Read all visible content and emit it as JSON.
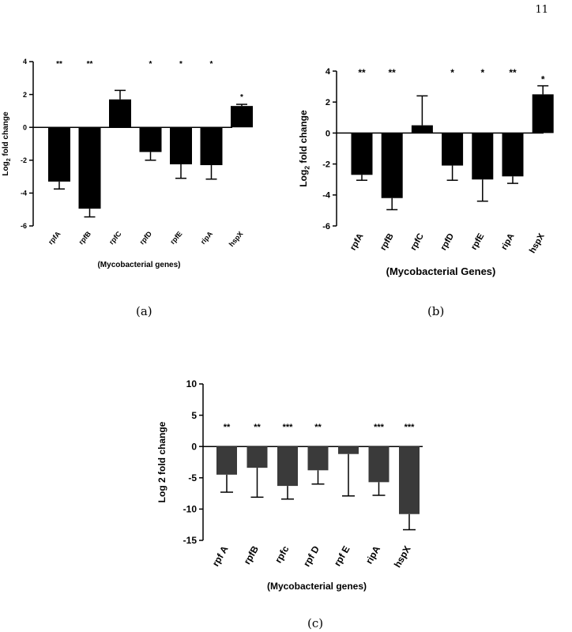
{
  "page_number": "11",
  "captions": [
    "(a)",
    "(b)",
    "(c)"
  ],
  "chart_data": [
    {
      "type": "bar",
      "categories": [
        "rpfA",
        "rpfB",
        "rpfC",
        "rpfD",
        "rpfE",
        "ripA",
        "hspX"
      ],
      "values": [
        -3.3,
        -4.95,
        1.7,
        -1.5,
        -2.25,
        -2.3,
        1.3
      ],
      "errors": [
        0.45,
        0.5,
        0.55,
        0.5,
        0.85,
        0.85,
        0.1
      ],
      "significance": [
        "**",
        "**",
        "",
        "*",
        "*",
        "*",
        "*"
      ],
      "xlabel": "(Mycobacterial genes)",
      "ylabel": "Log2 fold change",
      "yticks": [
        "4",
        "2",
        "0",
        "-2",
        "-4",
        "-6"
      ],
      "ylim": [
        -6,
        4
      ],
      "bar_color": "#000000"
    },
    {
      "type": "bar",
      "categories": [
        "rpfA",
        "rpfB",
        "rpfC",
        "rpfD",
        "rpfE",
        "ripA",
        "hspX"
      ],
      "values": [
        -2.7,
        -4.2,
        0.5,
        -2.1,
        -3.0,
        -2.8,
        2.5
      ],
      "errors": [
        0.35,
        0.75,
        1.9,
        0.95,
        1.4,
        0.45,
        0.55
      ],
      "significance": [
        "**",
        "**",
        "",
        "*",
        "*",
        "**",
        "*"
      ],
      "xlabel": "(Mycobacterial Genes)",
      "ylabel": "Log2 fold change",
      "yticks": [
        "4",
        "2",
        "0",
        "-2",
        "-4",
        "-6"
      ],
      "ylim": [
        -6,
        4
      ],
      "bar_color": "#000000"
    },
    {
      "type": "bar",
      "categories": [
        "rpf A",
        "rpfB",
        "rpfc",
        "rpf D",
        "rpf E",
        "ripA",
        "hspX"
      ],
      "values": [
        -4.5,
        -3.4,
        -6.3,
        -3.8,
        -1.2,
        -5.7,
        -10.8
      ],
      "errors": [
        2.8,
        4.7,
        2.1,
        2.2,
        6.7,
        2.1,
        2.5
      ],
      "significance": [
        "**",
        "**",
        "***",
        "**",
        "",
        "***",
        "***"
      ],
      "xlabel": "(Mycobacterial genes)",
      "ylabel": "Log 2 fold change",
      "yticks": [
        "10",
        "5",
        "0",
        "-5",
        "-10",
        "-15"
      ],
      "ylim": [
        -15,
        10
      ],
      "bar_color": "#3a3a3a"
    }
  ]
}
